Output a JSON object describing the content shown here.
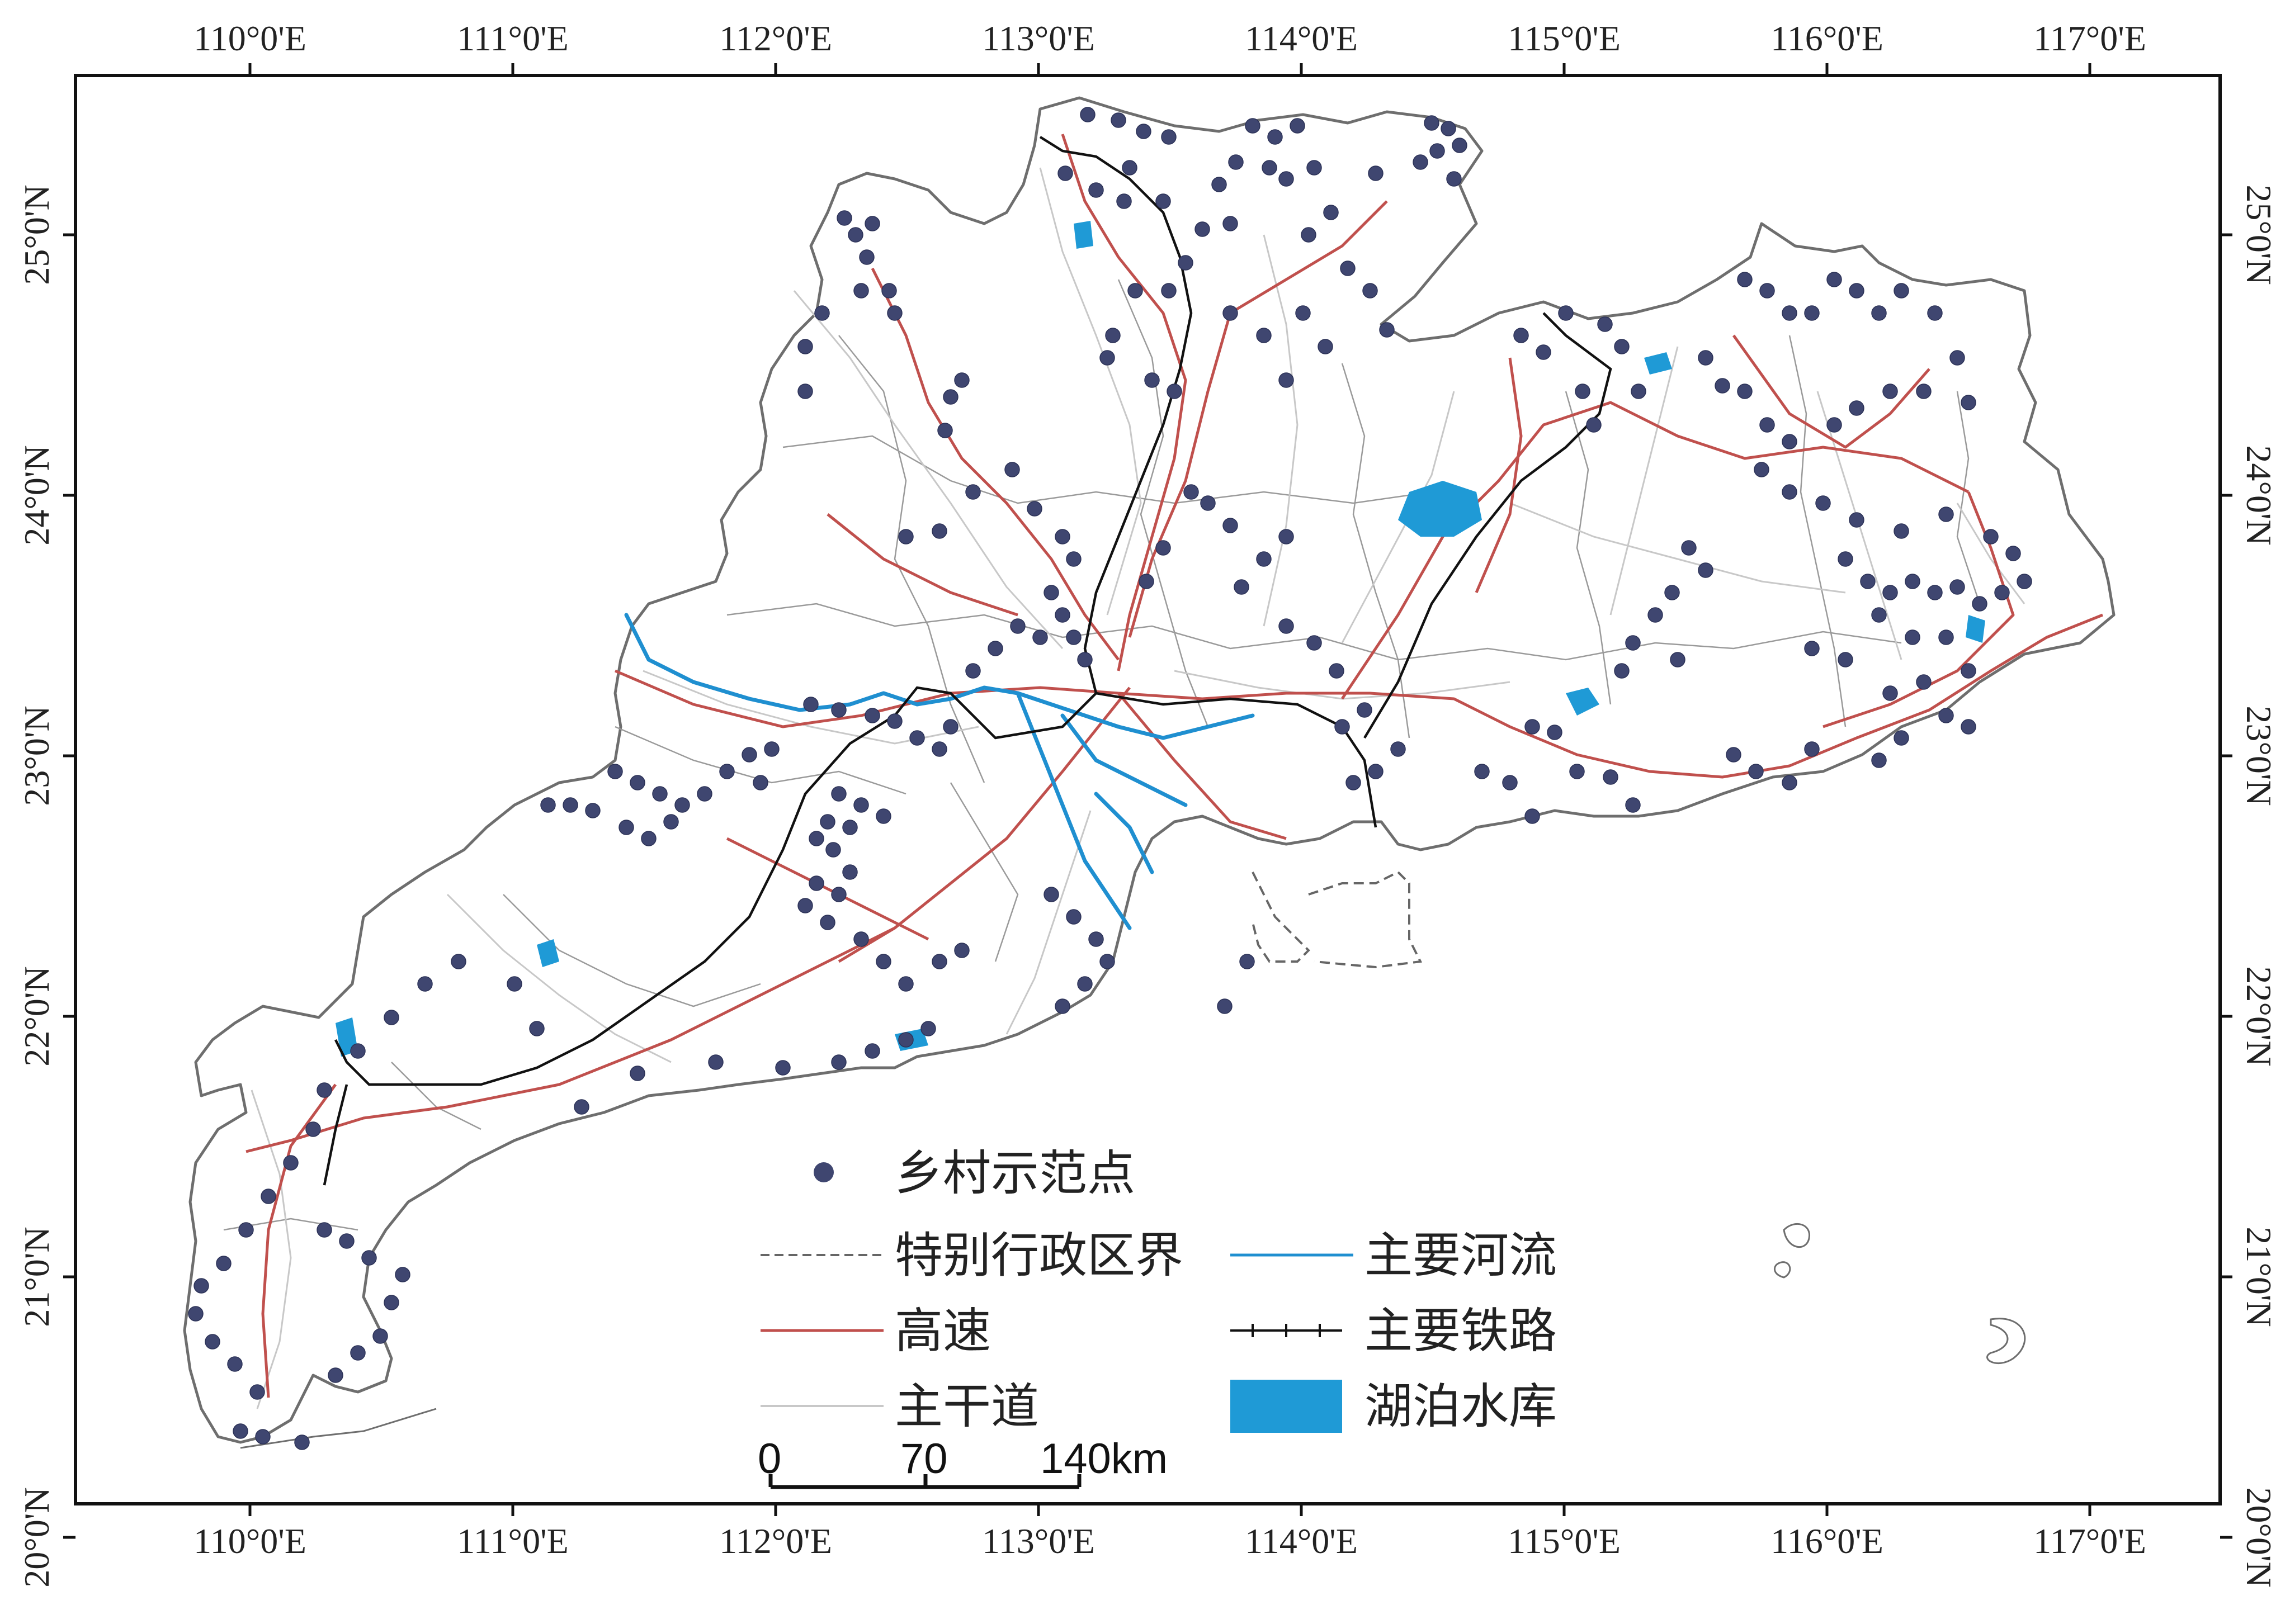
{
  "map": {
    "lon_labels": [
      "110°0'E",
      "111°0'E",
      "112°0'E",
      "113°0'E",
      "114°0'E",
      "115°0'E",
      "116°0'E",
      "117°0'E"
    ],
    "lat_labels": [
      "25°0'N",
      "24°0'N",
      "23°0'N",
      "22°0'N",
      "21°0'N",
      "20°0'N"
    ],
    "lon_range": [
      109.35,
      117.85
    ],
    "lat_range": [
      19.95,
      25.6
    ],
    "colors": {
      "boundary": "#6e6e6e",
      "sar_boundary": "#666666",
      "highway": "#c0504d",
      "trunk_road": "#c8c8c8",
      "river": "#1f8fd0",
      "lake": "#1f9ad6",
      "railway": "#111111",
      "village": "#3f4670"
    }
  },
  "legend": {
    "items": [
      {
        "label": "乡村示范点",
        "symbol": "village-dot"
      },
      {
        "label": "特别行政区界",
        "symbol": "dashed-line"
      },
      {
        "label": "主要河流",
        "symbol": "river-line"
      },
      {
        "label": "高速",
        "symbol": "highway-line"
      },
      {
        "label": "主要铁路",
        "symbol": "railway-line"
      },
      {
        "label": "主干道",
        "symbol": "trunk-line"
      },
      {
        "label": "湖泊水库",
        "symbol": "lake-patch"
      }
    ]
  },
  "scale_bar": {
    "labels": [
      "0",
      "70",
      "140km"
    ]
  }
}
